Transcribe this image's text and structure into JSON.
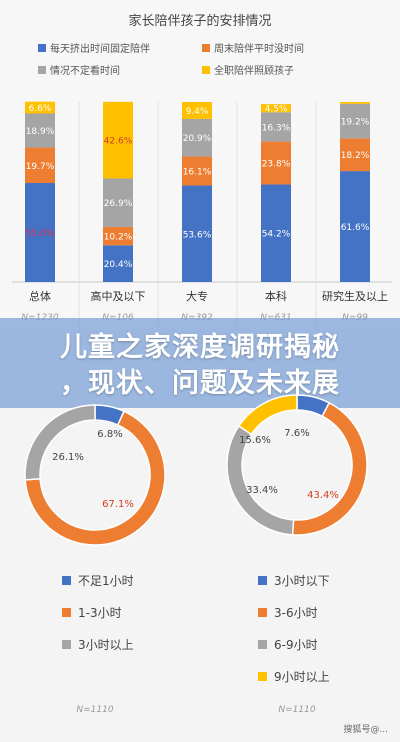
{
  "overlay": {
    "title": "儿童之家深度调研揭秘\n，现状、问题及未来展"
  },
  "watermark": "搜狐号@...",
  "chart_data": [
    {
      "type": "bar",
      "stacked": true,
      "title": "家长陪伴孩子的安排情况",
      "categories": [
        "总体",
        "高中及以下",
        "大专",
        "本科",
        "研究生及以上"
      ],
      "category_n": [
        "N=1230",
        "N=106",
        "N=392",
        "N=631",
        "N=99"
      ],
      "ylim": [
        0,
        100
      ],
      "series": [
        {
          "name": "每天挤出时间固定陪伴",
          "color": "#4472c4",
          "values": [
            55.0,
            20.4,
            53.6,
            54.2,
            61.6
          ],
          "labels": [
            "55.0%",
            "20.4%",
            "53.6%",
            "54.2%",
            "61.6%"
          ]
        },
        {
          "name": "周末陪伴平时没时间",
          "color": "#ed7d31",
          "values": [
            19.7,
            10.2,
            16.1,
            23.8,
            18.2
          ],
          "labels": [
            "19.7%",
            "10.2%",
            "16.1%",
            "23.8%",
            "18.2%"
          ]
        },
        {
          "name": "情况不定看时间",
          "color": "#a5a5a5",
          "values": [
            18.9,
            26.9,
            20.9,
            16.3,
            19.2
          ],
          "labels": [
            "18.9%",
            "26.9%",
            "20.9%",
            "16.3%",
            "19.2%"
          ]
        },
        {
          "name": "全职陪伴照顾孩子",
          "color": "#ffc000",
          "values": [
            6.6,
            42.6,
            9.4,
            4.5,
            1.0
          ],
          "labels": [
            "6.6%",
            "42.6%",
            "9.4%",
            "4.5%",
            ""
          ]
        }
      ],
      "legend_position": "top",
      "grid": false
    },
    {
      "type": "pie",
      "donut": true,
      "slices": [
        {
          "name": "不足1小时",
          "value": 6.8,
          "label": "6.8%",
          "color": "#4472c4"
        },
        {
          "name": "1-3小时",
          "value": 67.1,
          "label": "67.1%",
          "color": "#ed7d31"
        },
        {
          "name": "3小时以上",
          "value": 26.1,
          "label": "26.1%",
          "color": "#a5a5a5"
        }
      ],
      "n_label": "N=1110"
    },
    {
      "type": "pie",
      "donut": true,
      "slices": [
        {
          "name": "3小时以下",
          "value": 7.6,
          "label": "7.6%",
          "color": "#4472c4"
        },
        {
          "name": "3-6小时",
          "value": 43.4,
          "label": "43.4%",
          "color": "#ed7d31"
        },
        {
          "name": "6-9小时",
          "value": 33.4,
          "label": "33.4%",
          "color": "#a5a5a5"
        },
        {
          "name": "9小时以上",
          "value": 15.6,
          "label": "15.6%",
          "color": "#ffc000"
        }
      ],
      "n_label": "N=1110"
    }
  ]
}
